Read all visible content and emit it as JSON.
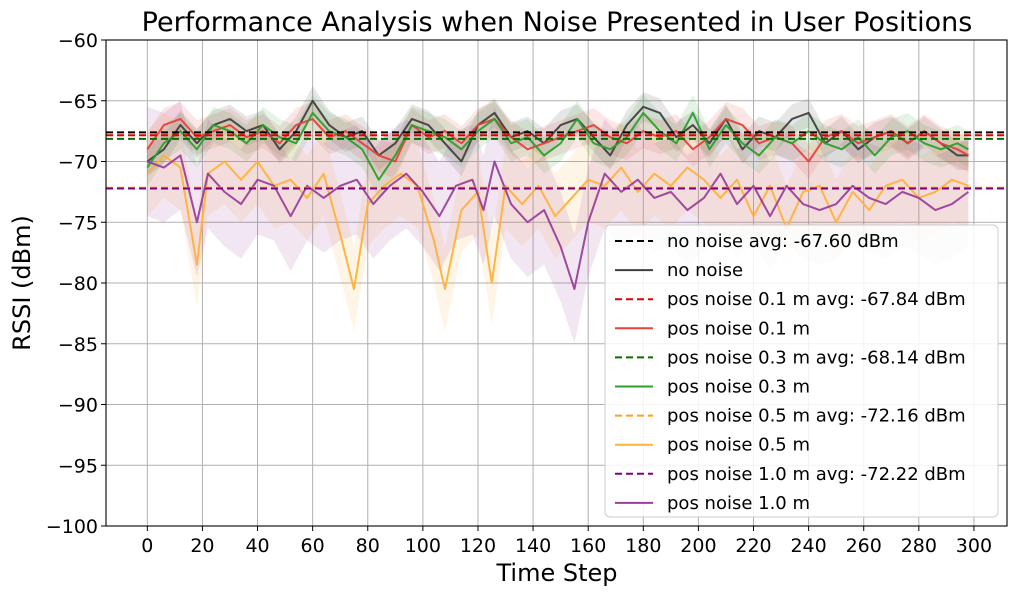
{
  "chart_data": {
    "type": "line",
    "title": "Performance Analysis when Noise Presented in User Positions",
    "xlabel": "Time Step",
    "ylabel": "RSSI (dBm)",
    "xlim": [
      -15,
      312
    ],
    "ylim": [
      -100,
      -60
    ],
    "xticks": [
      0,
      20,
      40,
      60,
      80,
      100,
      120,
      140,
      160,
      180,
      200,
      220,
      240,
      260,
      280,
      300
    ],
    "yticks": [
      -100,
      -95,
      -90,
      -85,
      -80,
      -75,
      -70,
      -65,
      -60
    ],
    "xtick_labels": [
      "0",
      "20",
      "40",
      "60",
      "80",
      "100",
      "120",
      "140",
      "160",
      "180",
      "200",
      "220",
      "240",
      "260",
      "280",
      "300"
    ],
    "ytick_labels": [
      "−100",
      "−95",
      "−90",
      "−85",
      "−80",
      "−75",
      "−70",
      "−65",
      "−60"
    ],
    "grid": true,
    "legend_position": "lower-right",
    "series": [
      {
        "name": "no noise",
        "color": "#404040",
        "avg": -67.6,
        "avg_label": "no noise avg: -67.60 dBm",
        "avg_color": "#000000",
        "band": 1.2,
        "points": [
          [
            0,
            -70.0
          ],
          [
            6,
            -69.0
          ],
          [
            12,
            -67.0
          ],
          [
            18,
            -68.5
          ],
          [
            24,
            -67.0
          ],
          [
            30,
            -66.5
          ],
          [
            36,
            -67.5
          ],
          [
            42,
            -67.0
          ],
          [
            48,
            -69.0
          ],
          [
            54,
            -67.5
          ],
          [
            60,
            -65.0
          ],
          [
            66,
            -67.0
          ],
          [
            72,
            -68.0
          ],
          [
            78,
            -67.5
          ],
          [
            84,
            -69.5
          ],
          [
            90,
            -68.5
          ],
          [
            96,
            -66.5
          ],
          [
            102,
            -67.0
          ],
          [
            108,
            -68.5
          ],
          [
            114,
            -70.0
          ],
          [
            120,
            -67.0
          ],
          [
            126,
            -66.0
          ],
          [
            132,
            -68.0
          ],
          [
            138,
            -67.5
          ],
          [
            144,
            -68.5
          ],
          [
            150,
            -67.0
          ],
          [
            156,
            -66.5
          ],
          [
            162,
            -68.0
          ],
          [
            168,
            -69.5
          ],
          [
            174,
            -67.0
          ],
          [
            180,
            -65.5
          ],
          [
            186,
            -66.0
          ],
          [
            192,
            -68.0
          ],
          [
            198,
            -67.0
          ],
          [
            204,
            -68.5
          ],
          [
            210,
            -66.5
          ],
          [
            216,
            -69.0
          ],
          [
            222,
            -67.5
          ],
          [
            228,
            -68.0
          ],
          [
            234,
            -66.5
          ],
          [
            240,
            -66.0
          ],
          [
            246,
            -68.5
          ],
          [
            252,
            -67.5
          ],
          [
            258,
            -69.0
          ],
          [
            264,
            -68.0
          ],
          [
            270,
            -67.5
          ],
          [
            276,
            -68.5
          ],
          [
            282,
            -67.5
          ],
          [
            288,
            -68.5
          ],
          [
            294,
            -69.5
          ],
          [
            298,
            -69.5
          ]
        ]
      },
      {
        "name": "pos noise 0.1 m",
        "color": "#e8403a",
        "avg": -67.84,
        "avg_label": "pos noise 0.1 m avg: -67.84 dBm",
        "avg_color": "#e00000",
        "band": 1.4,
        "points": [
          [
            0,
            -69.0
          ],
          [
            6,
            -67.0
          ],
          [
            12,
            -66.5
          ],
          [
            18,
            -68.0
          ],
          [
            24,
            -67.5
          ],
          [
            30,
            -67.0
          ],
          [
            36,
            -68.0
          ],
          [
            42,
            -67.5
          ],
          [
            48,
            -68.5
          ],
          [
            54,
            -67.0
          ],
          [
            60,
            -66.5
          ],
          [
            66,
            -68.0
          ],
          [
            72,
            -67.5
          ],
          [
            78,
            -68.5
          ],
          [
            84,
            -69.5
          ],
          [
            90,
            -70.0
          ],
          [
            96,
            -67.0
          ],
          [
            102,
            -68.0
          ],
          [
            108,
            -67.5
          ],
          [
            114,
            -68.5
          ],
          [
            120,
            -67.0
          ],
          [
            126,
            -66.5
          ],
          [
            132,
            -68.0
          ],
          [
            138,
            -69.0
          ],
          [
            144,
            -68.5
          ],
          [
            150,
            -68.0
          ],
          [
            156,
            -67.5
          ],
          [
            162,
            -67.0
          ],
          [
            168,
            -68.0
          ],
          [
            174,
            -68.5
          ],
          [
            180,
            -67.5
          ],
          [
            186,
            -68.0
          ],
          [
            192,
            -67.5
          ],
          [
            198,
            -69.0
          ],
          [
            204,
            -68.0
          ],
          [
            210,
            -66.5
          ],
          [
            216,
            -67.0
          ],
          [
            222,
            -68.5
          ],
          [
            228,
            -68.0
          ],
          [
            234,
            -68.5
          ],
          [
            240,
            -70.0
          ],
          [
            246,
            -68.0
          ],
          [
            252,
            -67.5
          ],
          [
            258,
            -68.5
          ],
          [
            264,
            -68.0
          ],
          [
            270,
            -67.5
          ],
          [
            276,
            -68.5
          ],
          [
            282,
            -67.5
          ],
          [
            288,
            -68.5
          ],
          [
            294,
            -69.0
          ],
          [
            298,
            -69.5
          ]
        ]
      },
      {
        "name": "pos noise 0.3 m",
        "color": "#2ca02c",
        "avg": -68.14,
        "avg_label": "pos noise 0.3 m avg: -68.14 dBm",
        "avg_color": "#007000",
        "band": 1.5,
        "points": [
          [
            0,
            -70.5
          ],
          [
            6,
            -68.5
          ],
          [
            12,
            -67.5
          ],
          [
            18,
            -69.0
          ],
          [
            24,
            -67.0
          ],
          [
            30,
            -67.5
          ],
          [
            36,
            -68.5
          ],
          [
            42,
            -67.0
          ],
          [
            48,
            -68.0
          ],
          [
            54,
            -68.5
          ],
          [
            60,
            -66.0
          ],
          [
            66,
            -67.5
          ],
          [
            72,
            -68.0
          ],
          [
            78,
            -69.0
          ],
          [
            84,
            -71.5
          ],
          [
            90,
            -69.5
          ],
          [
            96,
            -67.0
          ],
          [
            102,
            -67.5
          ],
          [
            108,
            -68.0
          ],
          [
            114,
            -69.0
          ],
          [
            120,
            -67.5
          ],
          [
            126,
            -66.5
          ],
          [
            132,
            -68.5
          ],
          [
            138,
            -68.0
          ],
          [
            144,
            -69.5
          ],
          [
            150,
            -68.5
          ],
          [
            156,
            -66.5
          ],
          [
            162,
            -68.5
          ],
          [
            168,
            -69.0
          ],
          [
            174,
            -68.0
          ],
          [
            180,
            -66.0
          ],
          [
            186,
            -67.5
          ],
          [
            192,
            -68.5
          ],
          [
            198,
            -66.0
          ],
          [
            204,
            -69.0
          ],
          [
            210,
            -67.0
          ],
          [
            216,
            -68.5
          ],
          [
            222,
            -69.5
          ],
          [
            228,
            -68.0
          ],
          [
            234,
            -68.5
          ],
          [
            240,
            -67.5
          ],
          [
            246,
            -68.5
          ],
          [
            252,
            -69.0
          ],
          [
            258,
            -68.0
          ],
          [
            264,
            -69.5
          ],
          [
            270,
            -68.0
          ],
          [
            276,
            -67.5
          ],
          [
            282,
            -68.5
          ],
          [
            288,
            -69.0
          ],
          [
            294,
            -68.5
          ],
          [
            298,
            -69.0
          ]
        ]
      },
      {
        "name": "pos noise 0.5 m",
        "color": "#ffb13b",
        "avg": -72.16,
        "avg_label": "pos noise 0.5 m avg: -72.16 dBm",
        "avg_color": "#ff9f1a",
        "band": 3.5,
        "points": [
          [
            0,
            -71.0
          ],
          [
            6,
            -69.5
          ],
          [
            12,
            -70.5
          ],
          [
            18,
            -78.5
          ],
          [
            22,
            -71.0
          ],
          [
            28,
            -70.0
          ],
          [
            34,
            -71.5
          ],
          [
            40,
            -70.0
          ],
          [
            46,
            -72.0
          ],
          [
            52,
            -71.5
          ],
          [
            58,
            -73.0
          ],
          [
            64,
            -71.0
          ],
          [
            70,
            -76.0
          ],
          [
            75,
            -80.5
          ],
          [
            80,
            -73.5
          ],
          [
            86,
            -72.0
          ],
          [
            92,
            -71.0
          ],
          [
            98,
            -72.0
          ],
          [
            104,
            -76.5
          ],
          [
            108,
            -80.5
          ],
          [
            114,
            -74.0
          ],
          [
            120,
            -72.5
          ],
          [
            125,
            -80.0
          ],
          [
            130,
            -72.0
          ],
          [
            136,
            -73.5
          ],
          [
            142,
            -72.0
          ],
          [
            148,
            -74.5
          ],
          [
            154,
            -73.0
          ],
          [
            160,
            -71.5
          ],
          [
            166,
            -72.0
          ],
          [
            172,
            -70.5
          ],
          [
            178,
            -72.5
          ],
          [
            184,
            -71.0
          ],
          [
            190,
            -72.0
          ],
          [
            196,
            -70.5
          ],
          [
            202,
            -71.5
          ],
          [
            208,
            -73.0
          ],
          [
            214,
            -71.5
          ],
          [
            220,
            -74.5
          ],
          [
            226,
            -72.0
          ],
          [
            232,
            -75.5
          ],
          [
            238,
            -72.5
          ],
          [
            244,
            -72.0
          ],
          [
            250,
            -75.0
          ],
          [
            256,
            -72.5
          ],
          [
            262,
            -74.0
          ],
          [
            268,
            -72.0
          ],
          [
            274,
            -71.5
          ],
          [
            280,
            -73.0
          ],
          [
            286,
            -72.5
          ],
          [
            292,
            -71.5
          ],
          [
            298,
            -72.0
          ]
        ]
      },
      {
        "name": "pos noise 1.0 m",
        "color": "#9a3f9a",
        "avg": -72.22,
        "avg_label": "pos noise 1.0 m avg: -72.22 dBm",
        "avg_color": "#800080",
        "band": 4.5,
        "points": [
          [
            0,
            -70.0
          ],
          [
            6,
            -70.5
          ],
          [
            12,
            -69.5
          ],
          [
            18,
            -75.0
          ],
          [
            22,
            -71.0
          ],
          [
            28,
            -72.5
          ],
          [
            34,
            -73.5
          ],
          [
            40,
            -71.5
          ],
          [
            46,
            -72.0
          ],
          [
            52,
            -74.5
          ],
          [
            58,
            -72.0
          ],
          [
            64,
            -73.0
          ],
          [
            70,
            -72.0
          ],
          [
            76,
            -71.5
          ],
          [
            82,
            -73.5
          ],
          [
            88,
            -72.0
          ],
          [
            94,
            -71.0
          ],
          [
            100,
            -72.5
          ],
          [
            106,
            -74.5
          ],
          [
            112,
            -72.0
          ],
          [
            118,
            -71.5
          ],
          [
            122,
            -74.0
          ],
          [
            126,
            -70.0
          ],
          [
            132,
            -73.5
          ],
          [
            138,
            -75.0
          ],
          [
            144,
            -74.0
          ],
          [
            150,
            -77.0
          ],
          [
            155,
            -80.5
          ],
          [
            160,
            -75.0
          ],
          [
            166,
            -71.0
          ],
          [
            172,
            -72.5
          ],
          [
            178,
            -71.5
          ],
          [
            184,
            -73.0
          ],
          [
            190,
            -72.5
          ],
          [
            196,
            -74.0
          ],
          [
            202,
            -73.0
          ],
          [
            208,
            -71.0
          ],
          [
            214,
            -73.5
          ],
          [
            220,
            -72.0
          ],
          [
            226,
            -74.5
          ],
          [
            232,
            -72.0
          ],
          [
            238,
            -73.5
          ],
          [
            244,
            -74.0
          ],
          [
            250,
            -73.5
          ],
          [
            256,
            -72.0
          ],
          [
            262,
            -73.0
          ],
          [
            268,
            -73.5
          ],
          [
            274,
            -72.5
          ],
          [
            280,
            -73.0
          ],
          [
            286,
            -74.0
          ],
          [
            292,
            -73.5
          ],
          [
            298,
            -72.5
          ]
        ]
      }
    ]
  }
}
